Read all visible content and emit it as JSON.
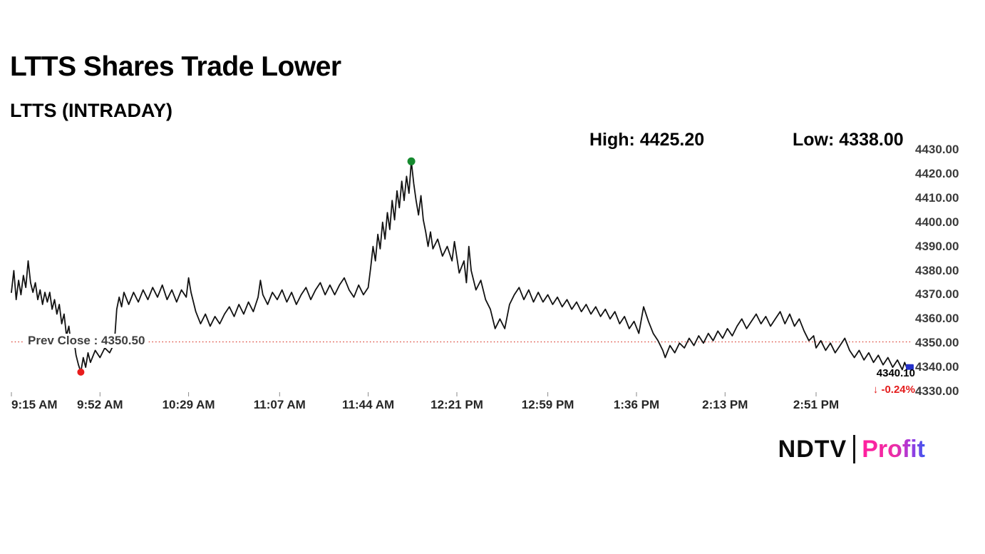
{
  "header": {
    "title": "LTTS Shares Trade Lower",
    "subtitle": "LTTS (INTRADAY)",
    "high_label": "High: 4425.20",
    "low_label": "Low: 4338.00"
  },
  "chart_data": {
    "type": "line",
    "title": "LTTS (INTRADAY)",
    "x_unit": "minutes since 9:15 AM",
    "x_tick_labels": [
      "9:15 AM",
      "9:52 AM",
      "10:29 AM",
      "11:07 AM",
      "11:44 AM",
      "12:21 PM",
      "12:59 PM",
      "1:36 PM",
      "2:13 PM",
      "2:51 PM"
    ],
    "x_tick_minutes": [
      0,
      37,
      74,
      112,
      149,
      186,
      224,
      261,
      298,
      336
    ],
    "y_tick_labels": [
      "4430.00",
      "4420.00",
      "4410.00",
      "4400.00",
      "4390.00",
      "4380.00",
      "4370.00",
      "4360.00",
      "4350.00",
      "4340.00",
      "4330.00"
    ],
    "y_tick_values": [
      4430,
      4420,
      4410,
      4400,
      4390,
      4380,
      4370,
      4360,
      4350,
      4340,
      4330
    ],
    "ylim": [
      4330,
      4430
    ],
    "xlim_minutes": [
      0,
      375
    ],
    "grid": false,
    "legend": "none",
    "high": 4425.2,
    "low": 4338.0,
    "prev_close": 4350.5,
    "prev_close_label": "Prev Close : 4350.50",
    "last_price": 4340.1,
    "last_price_label": "4340.10",
    "change_label": "↓ -0.24%",
    "line_color": "#121212",
    "prev_close_color": "#d93a2b",
    "tick_color": "#8a8a8a",
    "markers": {
      "high": {
        "t": 167,
        "price": 4425.2,
        "color": "#168a2f"
      },
      "low": {
        "t": 29,
        "price": 4338.0,
        "color": "#e81c1c"
      },
      "last": {
        "t": 375,
        "price": 4340.1,
        "color": "#2430c9"
      }
    },
    "points": [
      [
        0,
        4371
      ],
      [
        1,
        4380
      ],
      [
        2,
        4368
      ],
      [
        3,
        4376
      ],
      [
        4,
        4370
      ],
      [
        5,
        4378
      ],
      [
        6,
        4373
      ],
      [
        7,
        4384
      ],
      [
        8,
        4375
      ],
      [
        9,
        4371
      ],
      [
        10,
        4375
      ],
      [
        11,
        4368
      ],
      [
        12,
        4372
      ],
      [
        13,
        4366
      ],
      [
        14,
        4371
      ],
      [
        15,
        4367
      ],
      [
        16,
        4371
      ],
      [
        17,
        4364
      ],
      [
        18,
        4368
      ],
      [
        19,
        4362
      ],
      [
        20,
        4366
      ],
      [
        21,
        4358
      ],
      [
        22,
        4362
      ],
      [
        23,
        4353
      ],
      [
        24,
        4357
      ],
      [
        25,
        4349
      ],
      [
        26,
        4352
      ],
      [
        27,
        4345
      ],
      [
        28,
        4341
      ],
      [
        29,
        4338
      ],
      [
        30,
        4344
      ],
      [
        31,
        4340
      ],
      [
        32,
        4346
      ],
      [
        33,
        4342
      ],
      [
        35,
        4347
      ],
      [
        37,
        4344
      ],
      [
        39,
        4348
      ],
      [
        41,
        4346
      ],
      [
        43,
        4350
      ],
      [
        44,
        4364
      ],
      [
        45,
        4369
      ],
      [
        46,
        4365
      ],
      [
        47,
        4371
      ],
      [
        49,
        4366
      ],
      [
        51,
        4371
      ],
      [
        53,
        4367
      ],
      [
        55,
        4372
      ],
      [
        57,
        4368
      ],
      [
        59,
        4373
      ],
      [
        61,
        4369
      ],
      [
        63,
        4374
      ],
      [
        65,
        4368
      ],
      [
        67,
        4372
      ],
      [
        69,
        4367
      ],
      [
        71,
        4372
      ],
      [
        73,
        4369
      ],
      [
        74,
        4377
      ],
      [
        75,
        4371
      ],
      [
        77,
        4363
      ],
      [
        79,
        4358
      ],
      [
        81,
        4362
      ],
      [
        83,
        4357
      ],
      [
        85,
        4361
      ],
      [
        87,
        4358
      ],
      [
        89,
        4362
      ],
      [
        91,
        4365
      ],
      [
        93,
        4361
      ],
      [
        95,
        4366
      ],
      [
        97,
        4362
      ],
      [
        99,
        4367
      ],
      [
        101,
        4363
      ],
      [
        103,
        4369
      ],
      [
        104,
        4376
      ],
      [
        105,
        4370
      ],
      [
        107,
        4366
      ],
      [
        109,
        4371
      ],
      [
        111,
        4368
      ],
      [
        113,
        4372
      ],
      [
        115,
        4367
      ],
      [
        117,
        4371
      ],
      [
        119,
        4366
      ],
      [
        121,
        4370
      ],
      [
        123,
        4373
      ],
      [
        125,
        4368
      ],
      [
        127,
        4372
      ],
      [
        129,
        4375
      ],
      [
        131,
        4370
      ],
      [
        133,
        4374
      ],
      [
        135,
        4370
      ],
      [
        137,
        4374
      ],
      [
        139,
        4377
      ],
      [
        141,
        4372
      ],
      [
        143,
        4369
      ],
      [
        145,
        4374
      ],
      [
        147,
        4370
      ],
      [
        149,
        4373
      ],
      [
        150,
        4381
      ],
      [
        151,
        4390
      ],
      [
        152,
        4384
      ],
      [
        153,
        4395
      ],
      [
        154,
        4389
      ],
      [
        155,
        4400
      ],
      [
        156,
        4393
      ],
      [
        157,
        4404
      ],
      [
        158,
        4397
      ],
      [
        159,
        4409
      ],
      [
        160,
        4401
      ],
      [
        161,
        4413
      ],
      [
        162,
        4406
      ],
      [
        163,
        4417
      ],
      [
        164,
        4409
      ],
      [
        165,
        4419
      ],
      [
        166,
        4412
      ],
      [
        167,
        4425.2
      ],
      [
        168,
        4416
      ],
      [
        169,
        4409
      ],
      [
        170,
        4403
      ],
      [
        171,
        4411
      ],
      [
        172,
        4401
      ],
      [
        173,
        4396
      ],
      [
        174,
        4390
      ],
      [
        175,
        4396
      ],
      [
        176,
        4389
      ],
      [
        178,
        4393
      ],
      [
        180,
        4386
      ],
      [
        182,
        4390
      ],
      [
        184,
        4384
      ],
      [
        185,
        4392
      ],
      [
        187,
        4379
      ],
      [
        189,
        4384
      ],
      [
        190,
        4375
      ],
      [
        191,
        4390
      ],
      [
        192,
        4380
      ],
      [
        194,
        4372
      ],
      [
        196,
        4376
      ],
      [
        198,
        4368
      ],
      [
        200,
        4364
      ],
      [
        202,
        4356
      ],
      [
        204,
        4360
      ],
      [
        206,
        4356
      ],
      [
        208,
        4366
      ],
      [
        210,
        4370
      ],
      [
        212,
        4373
      ],
      [
        214,
        4368
      ],
      [
        216,
        4372
      ],
      [
        218,
        4367
      ],
      [
        220,
        4371
      ],
      [
        222,
        4367
      ],
      [
        224,
        4370
      ],
      [
        226,
        4366
      ],
      [
        228,
        4369
      ],
      [
        230,
        4365
      ],
      [
        232,
        4368
      ],
      [
        234,
        4364
      ],
      [
        236,
        4367
      ],
      [
        238,
        4363
      ],
      [
        240,
        4366
      ],
      [
        242,
        4362
      ],
      [
        244,
        4365
      ],
      [
        246,
        4361
      ],
      [
        248,
        4364
      ],
      [
        250,
        4360
      ],
      [
        252,
        4363
      ],
      [
        254,
        4358
      ],
      [
        256,
        4361
      ],
      [
        258,
        4356
      ],
      [
        260,
        4359
      ],
      [
        262,
        4354
      ],
      [
        264,
        4365
      ],
      [
        266,
        4359
      ],
      [
        268,
        4354
      ],
      [
        270,
        4351
      ],
      [
        272,
        4347
      ],
      [
        273,
        4344
      ],
      [
        275,
        4349
      ],
      [
        277,
        4346
      ],
      [
        279,
        4350
      ],
      [
        281,
        4348
      ],
      [
        283,
        4352
      ],
      [
        285,
        4349
      ],
      [
        287,
        4353
      ],
      [
        289,
        4350
      ],
      [
        291,
        4354
      ],
      [
        293,
        4351
      ],
      [
        295,
        4355
      ],
      [
        297,
        4352
      ],
      [
        299,
        4356
      ],
      [
        301,
        4353
      ],
      [
        303,
        4357
      ],
      [
        305,
        4360
      ],
      [
        307,
        4356
      ],
      [
        309,
        4359
      ],
      [
        311,
        4362
      ],
      [
        313,
        4358
      ],
      [
        315,
        4361
      ],
      [
        317,
        4357
      ],
      [
        319,
        4360
      ],
      [
        321,
        4363
      ],
      [
        323,
        4358
      ],
      [
        325,
        4362
      ],
      [
        327,
        4357
      ],
      [
        329,
        4360
      ],
      [
        331,
        4355
      ],
      [
        333,
        4351
      ],
      [
        335,
        4353
      ],
      [
        336,
        4348
      ],
      [
        338,
        4351
      ],
      [
        340,
        4347
      ],
      [
        342,
        4350
      ],
      [
        344,
        4346
      ],
      [
        346,
        4349
      ],
      [
        348,
        4352
      ],
      [
        350,
        4347
      ],
      [
        352,
        4344
      ],
      [
        354,
        4347
      ],
      [
        356,
        4343
      ],
      [
        358,
        4346
      ],
      [
        360,
        4342
      ],
      [
        362,
        4345
      ],
      [
        364,
        4341
      ],
      [
        366,
        4344
      ],
      [
        368,
        4340
      ],
      [
        370,
        4343
      ],
      [
        372,
        4339
      ],
      [
        373,
        4342
      ],
      [
        374,
        4339.5
      ],
      [
        375,
        4340.1
      ]
    ]
  },
  "footer": {
    "brand_left": "NDTV",
    "brand_right": "Profit"
  }
}
